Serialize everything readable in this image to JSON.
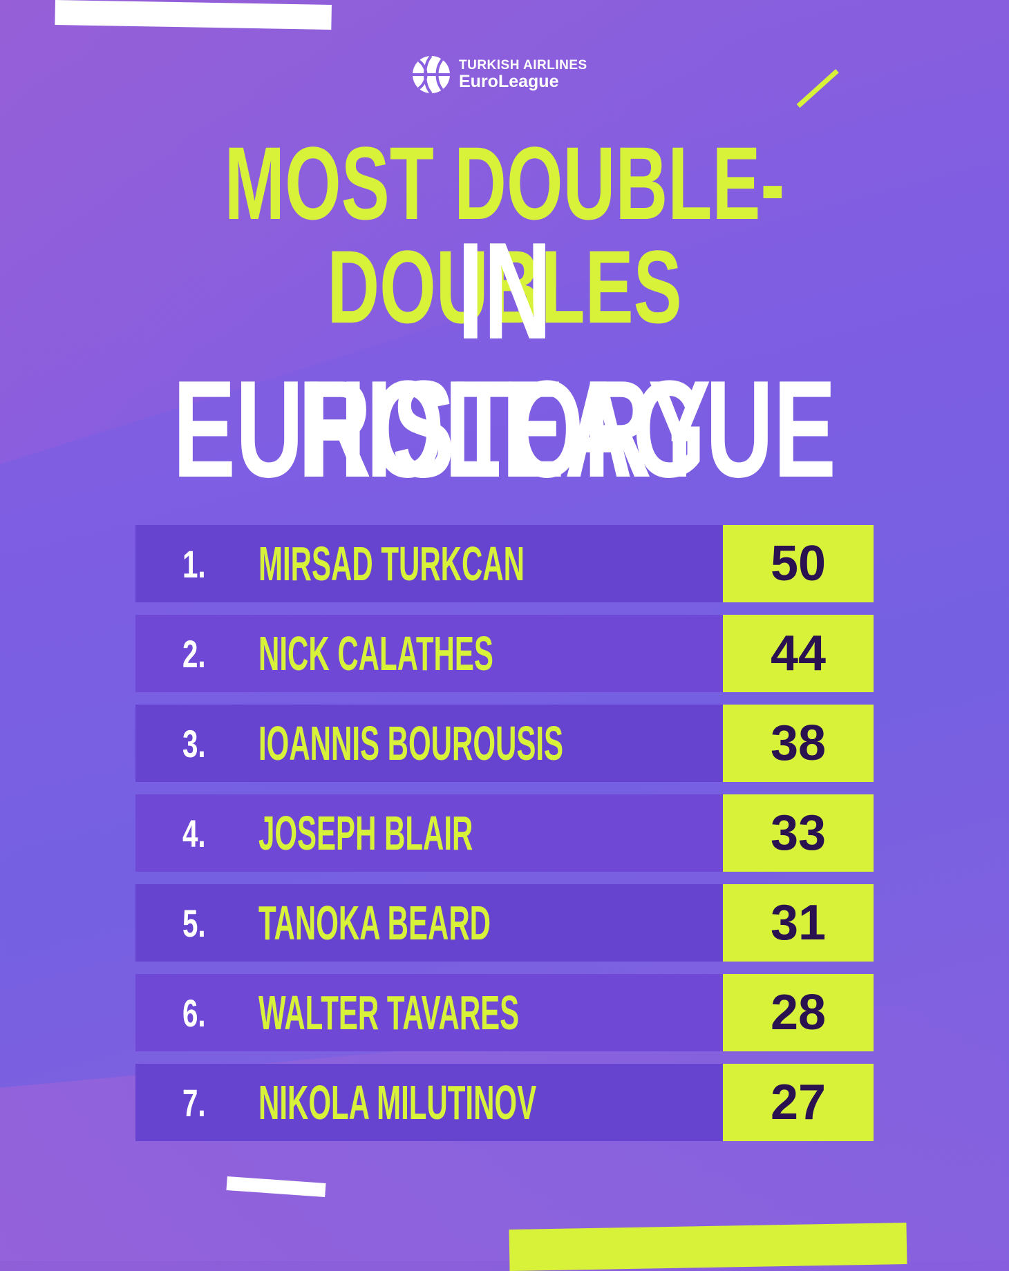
{
  "brand": {
    "line1": "TURKISH AIRLINES",
    "line2": "EuroLeague"
  },
  "headline": {
    "line1": "MOST DOUBLE-DOUBLES",
    "line2": "IN EUROLEAGUE",
    "line3": "HISTORY"
  },
  "ranking": [
    {
      "rank": "1.",
      "player": "MIRSAD TURKCAN",
      "value": "50"
    },
    {
      "rank": "2.",
      "player": "NICK CALATHES",
      "value": "44"
    },
    {
      "rank": "3.",
      "player": "IOANNIS BOUROUSIS",
      "value": "38"
    },
    {
      "rank": "4.",
      "player": "JOSEPH BLAIR",
      "value": "33"
    },
    {
      "rank": "5.",
      "player": "TANOKA BEARD",
      "value": "31"
    },
    {
      "rank": "6.",
      "player": "WALTER TAVARES",
      "value": "28"
    },
    {
      "rank": "7.",
      "player": "NIKOLA MILUTINOV",
      "value": "27"
    }
  ],
  "colors": {
    "lime": "#d8f23a",
    "purple_row": "#6a45d2",
    "value_text": "#2a1250",
    "white": "#ffffff"
  },
  "icons": {
    "logo": "basketball-logo-icon"
  }
}
